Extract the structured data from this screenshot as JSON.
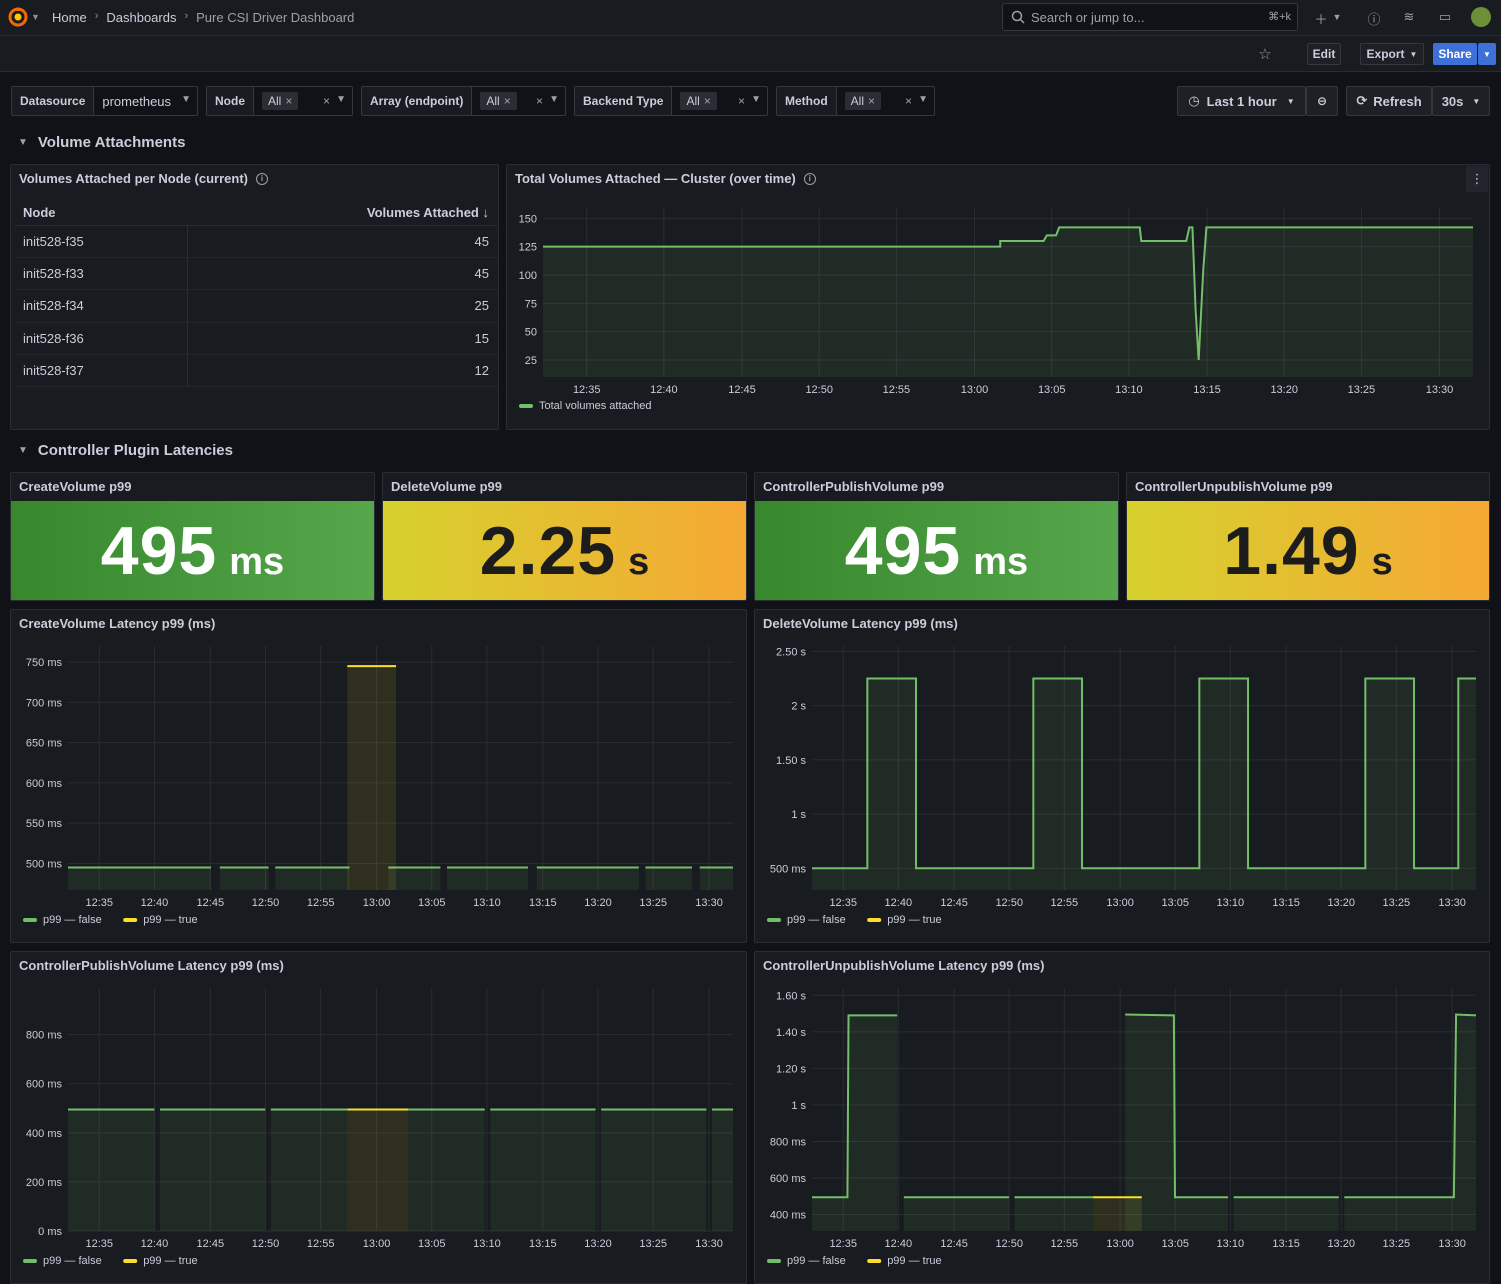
{
  "breadcrumb": {
    "home": "Home",
    "dashboards": "Dashboards",
    "current": "Pure CSI Driver Dashboard"
  },
  "search": {
    "placeholder": "Search or jump to...",
    "shortcut": "⌘+k"
  },
  "toolbar": {
    "edit": "Edit",
    "export": "Export",
    "share": "Share"
  },
  "variables": {
    "datasource": {
      "label": "Datasource",
      "value": "prometheus"
    },
    "node": {
      "label": "Node",
      "value": "All"
    },
    "array": {
      "label": "Array (endpoint)",
      "value": "All"
    },
    "backend": {
      "label": "Backend Type",
      "value": "All"
    },
    "method": {
      "label": "Method",
      "value": "All"
    }
  },
  "timepicker": {
    "range": "Last 1 hour",
    "refresh": "Refresh",
    "interval": "30s"
  },
  "rows": {
    "attachments": "Volume Attachments",
    "latencies": "Controller Plugin Latencies"
  },
  "nodes_table": {
    "title": "Volumes Attached per Node (current)",
    "columns": [
      "Node",
      "Volumes Attached"
    ],
    "rows": [
      {
        "node": "init528-f35",
        "value": "45"
      },
      {
        "node": "init528-f33",
        "value": "45"
      },
      {
        "node": "init528-f34",
        "value": "25"
      },
      {
        "node": "init528-f36",
        "value": "15"
      },
      {
        "node": "init528-f37",
        "value": "12"
      }
    ]
  },
  "stats": [
    {
      "title": "CreateVolume p99",
      "value": "495",
      "unit": "ms",
      "color": "green"
    },
    {
      "title": "DeleteVolume p99",
      "value": "2.25",
      "unit": "s",
      "color": "yellow"
    },
    {
      "title": "ControllerPublishVolume p99",
      "value": "495",
      "unit": "ms",
      "color": "green"
    },
    {
      "title": "ControllerUnpublishVolume p99",
      "value": "1.49",
      "unit": "s",
      "color": "yellow"
    }
  ],
  "colors": {
    "green": "#73bf69",
    "yellow": "#fade2a",
    "bg": "#111217",
    "panel": "#181b1f"
  },
  "chart_data": [
    {
      "id": "total",
      "type": "line",
      "title": "Total Volumes Attached — Cluster (over time)",
      "x_ticks": [
        "12:35",
        "12:40",
        "12:45",
        "12:50",
        "12:55",
        "13:00",
        "13:05",
        "13:10",
        "13:15",
        "13:20",
        "13:25",
        "13:30"
      ],
      "y_ticks": [
        25,
        50,
        75,
        100,
        125,
        150
      ],
      "y_labels": [
        "25",
        "50",
        "75",
        "100",
        "125",
        "150"
      ],
      "ylim": [
        10,
        160
      ],
      "xlim": [
        0,
        60
      ],
      "grid": true,
      "legend": "bottom-left",
      "series": [
        {
          "name": "Total volumes attached",
          "color": "green",
          "points": [
            [
              0,
              125
            ],
            [
              29.5,
              125
            ],
            [
              29.5,
              130
            ],
            [
              32.3,
              130
            ],
            [
              32.5,
              135
            ],
            [
              33.1,
              135
            ],
            [
              33.3,
              142
            ],
            [
              38.5,
              142
            ],
            [
              38.6,
              130
            ],
            [
              41.5,
              130
            ],
            [
              41.7,
              142
            ],
            [
              41.9,
              142
            ],
            [
              42.1,
              70
            ],
            [
              42.3,
              25
            ],
            [
              42.6,
              105
            ],
            [
              42.8,
              142
            ],
            [
              60,
              142
            ]
          ]
        }
      ]
    },
    {
      "id": "create",
      "type": "line",
      "title": "CreateVolume Latency p99 (ms)",
      "x_ticks": [
        "12:35",
        "12:40",
        "12:45",
        "12:50",
        "12:55",
        "13:00",
        "13:05",
        "13:10",
        "13:15",
        "13:20",
        "13:25",
        "13:30"
      ],
      "y_ticks": [
        500,
        550,
        600,
        650,
        700,
        750
      ],
      "y_labels": [
        "500 ms",
        "550 ms",
        "600 ms",
        "650 ms",
        "700 ms",
        "750 ms"
      ],
      "ylim": [
        467,
        770
      ],
      "xlim": [
        0,
        60
      ],
      "grid": true,
      "legend": "bottom-left",
      "series": [
        {
          "name": "p99 — false",
          "color": "green",
          "segments": [
            [
              [
                0,
                495
              ],
              [
                12.9,
                495
              ]
            ],
            [
              [
                13.7,
                495
              ],
              [
                18.1,
                495
              ]
            ],
            [
              [
                18.7,
                495
              ],
              [
                25.4,
                495
              ]
            ],
            [
              [
                28.9,
                495
              ],
              [
                33.6,
                495
              ]
            ],
            [
              [
                34.2,
                495
              ],
              [
                41.5,
                495
              ]
            ],
            [
              [
                42.3,
                495
              ],
              [
                51.5,
                495
              ]
            ],
            [
              [
                52.1,
                495
              ],
              [
                56.3,
                495
              ]
            ],
            [
              [
                57.0,
                495
              ],
              [
                60,
                495
              ]
            ]
          ]
        },
        {
          "name": "p99 — true",
          "color": "yellow",
          "segments": [
            [
              [
                25.2,
                745
              ],
              [
                29.6,
                745
              ]
            ]
          ]
        }
      ]
    },
    {
      "id": "delete",
      "type": "line",
      "title": "DeleteVolume Latency p99 (ms)",
      "x_ticks": [
        "12:35",
        "12:40",
        "12:45",
        "12:50",
        "12:55",
        "13:00",
        "13:05",
        "13:10",
        "13:15",
        "13:20",
        "13:25",
        "13:30"
      ],
      "y_ticks": [
        500,
        1000,
        1500,
        2000,
        2500
      ],
      "y_labels": [
        "500 ms",
        "1 s",
        "1.50 s",
        "2 s",
        "2.50 s"
      ],
      "ylim": [
        300,
        2550
      ],
      "xlim": [
        0,
        60
      ],
      "grid": true,
      "legend": "bottom-left",
      "series": [
        {
          "name": "p99 — false",
          "color": "green",
          "points": [
            [
              0,
              500
            ],
            [
              5.0,
              500
            ],
            [
              5.0,
              2250
            ],
            [
              9.4,
              2250
            ],
            [
              9.4,
              500
            ],
            [
              20.0,
              500
            ],
            [
              20.0,
              2250
            ],
            [
              24.4,
              2250
            ],
            [
              24.4,
              500
            ],
            [
              35.0,
              500
            ],
            [
              35.0,
              2250
            ],
            [
              39.4,
              2250
            ],
            [
              39.4,
              500
            ],
            [
              50.0,
              500
            ],
            [
              50.0,
              2250
            ],
            [
              54.4,
              2250
            ],
            [
              54.4,
              500
            ],
            [
              58.4,
              500
            ],
            [
              58.4,
              2250
            ],
            [
              60,
              2250
            ]
          ]
        },
        {
          "name": "p99 — true",
          "color": "yellow",
          "points": []
        }
      ]
    },
    {
      "id": "publish",
      "type": "line",
      "title": "ControllerPublishVolume Latency p99 (ms)",
      "x_ticks": [
        "12:35",
        "12:40",
        "12:45",
        "12:50",
        "12:55",
        "13:00",
        "13:05",
        "13:10",
        "13:15",
        "13:20",
        "13:25",
        "13:30"
      ],
      "y_ticks": [
        0,
        200,
        400,
        600,
        800
      ],
      "y_labels": [
        "0 ms",
        "200 ms",
        "400 ms",
        "600 ms",
        "800 ms"
      ],
      "ylim": [
        0,
        990
      ],
      "xlim": [
        0,
        60
      ],
      "grid": true,
      "legend": "bottom-left",
      "series": [
        {
          "name": "p99 — false",
          "color": "green",
          "segments": [
            [
              [
                0,
                495
              ],
              [
                7.8,
                495
              ]
            ],
            [
              [
                8.3,
                495
              ],
              [
                17.8,
                495
              ]
            ],
            [
              [
                18.3,
                495
              ],
              [
                25.2,
                495
              ]
            ],
            [
              [
                30.7,
                495
              ],
              [
                37.6,
                495
              ]
            ],
            [
              [
                38.1,
                495
              ],
              [
                47.6,
                495
              ]
            ],
            [
              [
                48.1,
                495
              ],
              [
                57.6,
                495
              ]
            ],
            [
              [
                58.1,
                495
              ],
              [
                60,
                495
              ]
            ]
          ]
        },
        {
          "name": "p99 — true",
          "color": "yellow",
          "segments": [
            [
              [
                25.2,
                495
              ],
              [
                30.7,
                495
              ]
            ]
          ]
        }
      ]
    },
    {
      "id": "unpublish",
      "type": "line",
      "title": "ControllerUnpublishVolume Latency p99 (ms)",
      "x_ticks": [
        "12:35",
        "12:40",
        "12:45",
        "12:50",
        "12:55",
        "13:00",
        "13:05",
        "13:10",
        "13:15",
        "13:20",
        "13:25",
        "13:30"
      ],
      "y_ticks": [
        400,
        600,
        800,
        1000,
        1200,
        1400,
        1600
      ],
      "y_labels": [
        "400 ms",
        "600 ms",
        "800 ms",
        "1 s",
        "1.20 s",
        "1.40 s",
        "1.60 s"
      ],
      "ylim": [
        310,
        1640
      ],
      "xlim": [
        0,
        60
      ],
      "grid": true,
      "legend": "bottom-left",
      "series": [
        {
          "name": "p99 — false",
          "color": "green",
          "segments": [
            [
              [
                0,
                495
              ],
              [
                3.2,
                495
              ],
              [
                3.3,
                1490
              ],
              [
                7.7,
                1490
              ]
            ],
            [
              [
                8.3,
                495
              ],
              [
                17.8,
                495
              ]
            ],
            [
              [
                18.3,
                495
              ],
              [
                25.4,
                495
              ]
            ],
            [
              [
                28.3,
                1495
              ],
              [
                32.7,
                1490
              ],
              [
                32.8,
                495
              ],
              [
                37.6,
                495
              ]
            ],
            [
              [
                38.1,
                495
              ],
              [
                47.6,
                495
              ]
            ],
            [
              [
                48.1,
                495
              ],
              [
                58.0,
                495
              ],
              [
                58.2,
                1495
              ],
              [
                60,
                1490
              ]
            ]
          ]
        },
        {
          "name": "p99 — true",
          "color": "yellow",
          "segments": [
            [
              [
                25.4,
                495
              ],
              [
                29.8,
                495
              ]
            ]
          ]
        }
      ]
    }
  ]
}
